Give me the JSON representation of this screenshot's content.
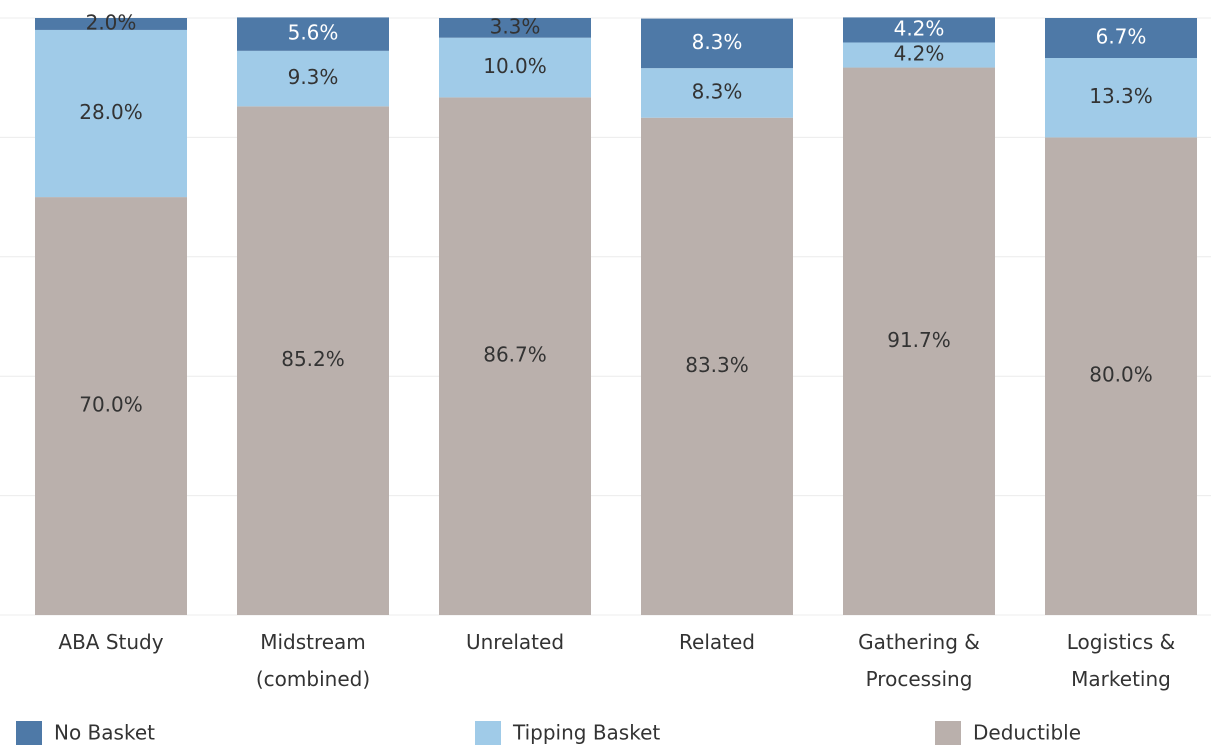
{
  "chart_data": {
    "type": "stacked_bar",
    "categories": [
      "ABA Study",
      "Midstream\n(combined)",
      "Unrelated",
      "Related",
      "Gathering &\nProcessing",
      "Logistics &\nMarketing"
    ],
    "series": [
      {
        "name": "No Basket",
        "color": "#4e79a7",
        "values": [
          2.0,
          5.6,
          3.3,
          8.3,
          4.2,
          6.7
        ],
        "value_labels": [
          "2.0%",
          "5.6%",
          "3.3%",
          "8.3%",
          "4.2%",
          "6.7%"
        ]
      },
      {
        "name": "Tipping Basket",
        "color": "#a0cbe8",
        "values": [
          28.0,
          9.3,
          10.0,
          8.3,
          4.2,
          13.3
        ],
        "value_labels": [
          "28.0%",
          "9.3%",
          "10.0%",
          "8.3%",
          "4.2%",
          "13.3%"
        ]
      },
      {
        "name": "Deductible",
        "color": "#bab0ac",
        "values": [
          70.0,
          85.2,
          86.7,
          83.3,
          91.7,
          80.0
        ],
        "value_labels": [
          "70.0%",
          "85.2%",
          "86.7%",
          "83.3%",
          "91.7%",
          "80.0%"
        ]
      }
    ],
    "stack_order": [
      "Deductible",
      "Tipping Basket",
      "No Basket"
    ],
    "ylim": [
      0,
      100
    ],
    "yticks": [
      0,
      20,
      40,
      60,
      80,
      100
    ],
    "grid": true,
    "legend": "bottom"
  }
}
